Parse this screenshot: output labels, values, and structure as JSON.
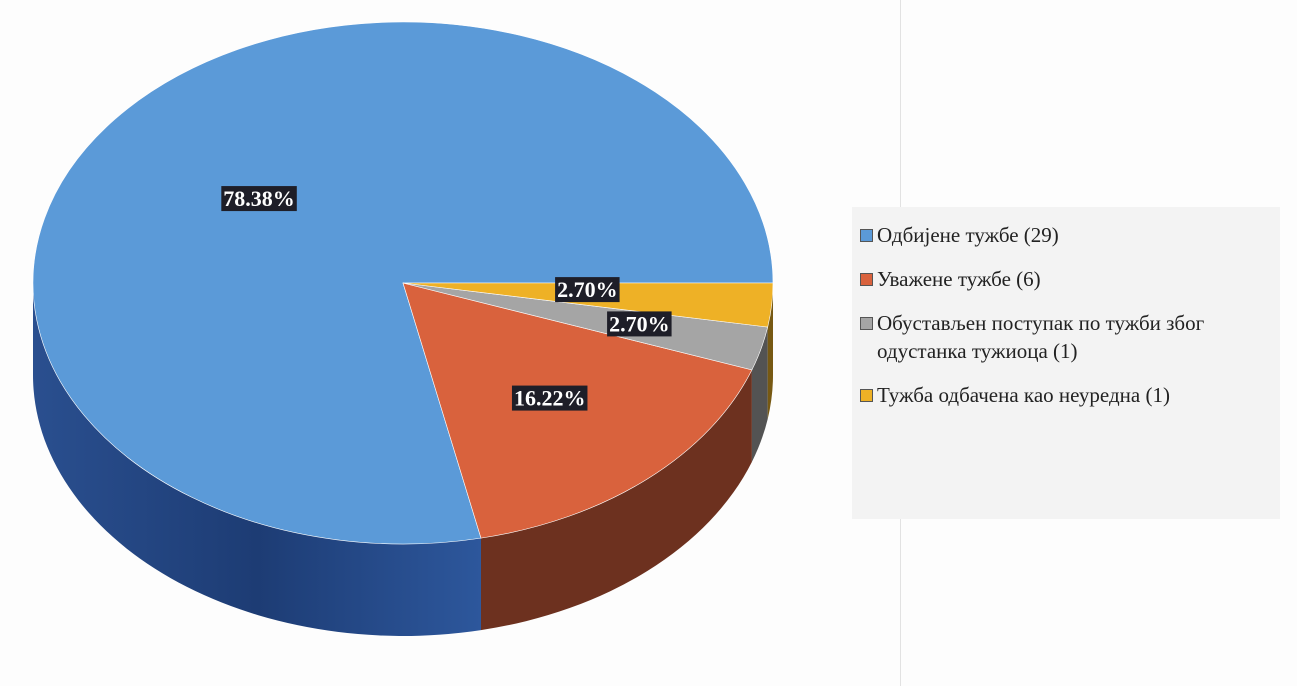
{
  "chart_data": {
    "type": "pie",
    "categories": [
      "Одбијене тужбе (29)",
      "Уважене тужбе (6)",
      "Обустављен поступак по тужби због одустанка тужиоца (1)",
      "Тужба одбачена као неуредна (1)"
    ],
    "values": [
      78.38,
      16.22,
      2.7,
      2.7
    ],
    "value_labels": [
      "78.38%",
      "16.22%",
      "2.70%",
      "2.70%"
    ],
    "colors": [
      "#5b9ad8",
      "#d9623d",
      "#a5a5a5",
      "#eeb126"
    ],
    "legend": "right"
  }
}
